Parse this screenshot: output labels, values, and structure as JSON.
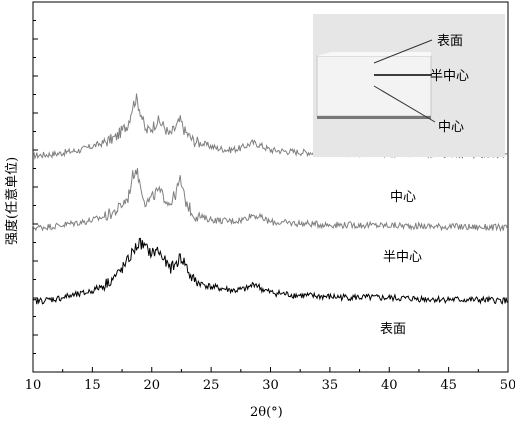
{
  "chart_data": {
    "type": "line",
    "title": "",
    "xlabel": "2θ(°)",
    "ylabel": "强度(任意单位)",
    "xlim": [
      10,
      50
    ],
    "ylim": [
      0,
      100
    ],
    "x_ticks": [
      10,
      15,
      20,
      25,
      30,
      35,
      40,
      45,
      50
    ],
    "grid": false,
    "legend": "none",
    "series": [
      {
        "name": "中心",
        "color": "#808080",
        "points": [
          [
            10,
            58.5
          ],
          [
            11,
            58.7
          ],
          [
            12,
            59.0
          ],
          [
            13,
            59.5
          ],
          [
            14,
            60.0
          ],
          [
            15,
            61.0
          ],
          [
            16,
            62.0
          ],
          [
            17,
            63.5
          ],
          [
            18,
            67.0
          ],
          [
            18.4,
            72.0
          ],
          [
            18.7,
            74.0
          ],
          [
            19.0,
            71.0
          ],
          [
            19.5,
            65.0
          ],
          [
            20.0,
            66.0
          ],
          [
            20.5,
            68.0
          ],
          [
            21.0,
            66.5
          ],
          [
            21.5,
            64.0
          ],
          [
            22.0,
            66.0
          ],
          [
            22.4,
            68.0
          ],
          [
            22.8,
            65.0
          ],
          [
            23.5,
            62.5
          ],
          [
            24.5,
            61.5
          ],
          [
            25.5,
            60.5
          ],
          [
            26.5,
            60.0
          ],
          [
            27.5,
            60.5
          ],
          [
            28.5,
            62.0
          ],
          [
            29.0,
            61.5
          ],
          [
            30.0,
            60.0
          ],
          [
            32,
            59.5
          ],
          [
            35,
            59.2
          ],
          [
            40,
            59.0
          ],
          [
            45,
            58.8
          ],
          [
            50,
            58.5
          ]
        ]
      },
      {
        "name": "半中心",
        "color": "#808080",
        "points": [
          [
            10,
            39.0
          ],
          [
            11,
            39.2
          ],
          [
            12,
            39.5
          ],
          [
            13,
            40.0
          ],
          [
            14,
            40.5
          ],
          [
            15,
            41.0
          ],
          [
            16,
            42.0
          ],
          [
            17,
            43.5
          ],
          [
            18,
            47.0
          ],
          [
            18.4,
            53.0
          ],
          [
            18.7,
            55.0
          ],
          [
            19.0,
            51.0
          ],
          [
            19.5,
            45.5
          ],
          [
            20.0,
            47.0
          ],
          [
            20.5,
            49.0
          ],
          [
            21.0,
            47.5
          ],
          [
            21.5,
            45.5
          ],
          [
            22.0,
            48.0
          ],
          [
            22.4,
            52.0
          ],
          [
            22.8,
            46.5
          ],
          [
            23.5,
            42.5
          ],
          [
            24.5,
            41.5
          ],
          [
            25.5,
            41.0
          ],
          [
            26.5,
            40.8
          ],
          [
            27.5,
            41.0
          ],
          [
            28.5,
            42.5
          ],
          [
            29.0,
            42.0
          ],
          [
            30.0,
            40.5
          ],
          [
            32,
            40.2
          ],
          [
            35,
            39.8
          ],
          [
            40,
            39.6
          ],
          [
            45,
            39.3
          ],
          [
            50,
            39.0
          ]
        ]
      },
      {
        "name": "表面",
        "color": "#000000",
        "points": [
          [
            10,
            19.0
          ],
          [
            11,
            19.4
          ],
          [
            12,
            19.8
          ],
          [
            13,
            20.5
          ],
          [
            14,
            21.0
          ],
          [
            15,
            22.0
          ],
          [
            16,
            23.5
          ],
          [
            17,
            26.0
          ],
          [
            17.8,
            29.0
          ],
          [
            18.5,
            33.0
          ],
          [
            19.0,
            35.0
          ],
          [
            19.5,
            33.5
          ],
          [
            20.0,
            32.0
          ],
          [
            20.5,
            33.0
          ],
          [
            21.0,
            30.5
          ],
          [
            21.5,
            28.0
          ],
          [
            22.0,
            29.0
          ],
          [
            22.4,
            31.0
          ],
          [
            22.8,
            29.5
          ],
          [
            23.3,
            25.5
          ],
          [
            24.0,
            24.0
          ],
          [
            25.0,
            23.0
          ],
          [
            26.0,
            22.5
          ],
          [
            27.0,
            22.0
          ],
          [
            28.0,
            22.5
          ],
          [
            28.7,
            24.0
          ],
          [
            29.2,
            22.5
          ],
          [
            30.0,
            21.5
          ],
          [
            32,
            20.8
          ],
          [
            35,
            20.3
          ],
          [
            40,
            20.0
          ],
          [
            45,
            19.6
          ],
          [
            50,
            19.3
          ]
        ]
      }
    ],
    "annotations": [
      "中心",
      "半中心",
      "表面"
    ]
  },
  "inset": {
    "labels": [
      "表面",
      "半中心",
      "中心"
    ]
  }
}
